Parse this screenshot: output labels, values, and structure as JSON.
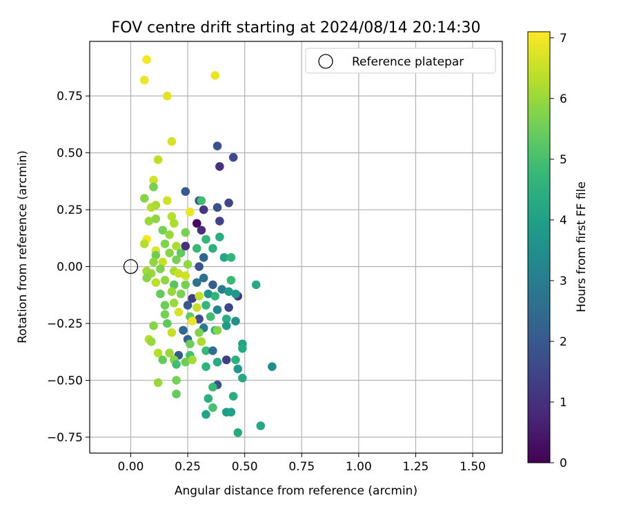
{
  "chart_data": {
    "type": "scatter",
    "title": "FOV centre drift starting at 2024/08/14 20:14:30",
    "xlabel": "Angular distance from reference (arcmin)",
    "ylabel": "Rotation from reference (arcmin)",
    "xlim": [
      -0.18,
      1.63
    ],
    "ylim": [
      -0.82,
      0.99
    ],
    "xticks": [
      0.0,
      0.25,
      0.5,
      0.75,
      1.0,
      1.25,
      1.5
    ],
    "xtick_labels": [
      "0.00",
      "0.25",
      "0.50",
      "0.75",
      "1.00",
      "1.25",
      "1.50"
    ],
    "yticks": [
      -0.75,
      -0.5,
      -0.25,
      0.0,
      0.25,
      0.5,
      0.75
    ],
    "ytick_labels": [
      "−0.75",
      "−0.50",
      "−0.25",
      "0.00",
      "0.25",
      "0.50",
      "0.75"
    ],
    "grid": true,
    "legend": {
      "position": "top-right",
      "entries": [
        "Reference platepar"
      ]
    },
    "reference_point": {
      "x": 0.0,
      "y": 0.0,
      "marker": "open-circle"
    },
    "colorbar": {
      "label": "Hours from first FF file",
      "min": 0,
      "max": 7.1,
      "ticks": [
        0,
        1,
        2,
        3,
        4,
        5,
        6,
        7
      ],
      "tick_labels": [
        "0",
        "1",
        "2",
        "3",
        "4",
        "5",
        "6",
        "7"
      ],
      "colormap": "viridis"
    },
    "colormap_stops": [
      "#440154",
      "#482878",
      "#3e4989",
      "#31688e",
      "#26828e",
      "#1f9e89",
      "#35b779",
      "#6ece58",
      "#b5de2b",
      "#fde725"
    ],
    "points": [
      {
        "x": 0.07,
        "y": 0.91,
        "h": 7.0
      },
      {
        "x": 0.06,
        "y": 0.82,
        "h": 6.9
      },
      {
        "x": 0.37,
        "y": 0.84,
        "h": 6.9
      },
      {
        "x": 0.16,
        "y": 0.75,
        "h": 6.8
      },
      {
        "x": 0.18,
        "y": 0.55,
        "h": 6.7
      },
      {
        "x": 0.12,
        "y": 0.47,
        "h": 6.4
      },
      {
        "x": 0.38,
        "y": 0.53,
        "h": 1.8
      },
      {
        "x": 0.45,
        "y": 0.48,
        "h": 1.6
      },
      {
        "x": 0.39,
        "y": 0.44,
        "h": 1.0
      },
      {
        "x": 0.1,
        "y": 0.38,
        "h": 6.6
      },
      {
        "x": 0.1,
        "y": 0.35,
        "h": 5.6
      },
      {
        "x": 0.24,
        "y": 0.33,
        "h": 2.0
      },
      {
        "x": 0.06,
        "y": 0.3,
        "h": 5.8
      },
      {
        "x": 0.16,
        "y": 0.29,
        "h": 6.6
      },
      {
        "x": 0.3,
        "y": 0.29,
        "h": 1.8
      },
      {
        "x": 0.31,
        "y": 0.29,
        "h": 4.9
      },
      {
        "x": 0.38,
        "y": 0.26,
        "h": 1.8
      },
      {
        "x": 0.43,
        "y": 0.28,
        "h": 1.5
      },
      {
        "x": 0.09,
        "y": 0.26,
        "h": 6.3
      },
      {
        "x": 0.11,
        "y": 0.27,
        "h": 6.2
      },
      {
        "x": 0.26,
        "y": 0.24,
        "h": 6.9
      },
      {
        "x": 0.32,
        "y": 0.25,
        "h": 1.2
      },
      {
        "x": 0.08,
        "y": 0.2,
        "h": 6.0
      },
      {
        "x": 0.11,
        "y": 0.21,
        "h": 5.9
      },
      {
        "x": 0.18,
        "y": 0.22,
        "h": 6.3
      },
      {
        "x": 0.19,
        "y": 0.19,
        "h": 6.2
      },
      {
        "x": 0.29,
        "y": 0.19,
        "h": 0.2
      },
      {
        "x": 0.31,
        "y": 0.16,
        "h": 0.9
      },
      {
        "x": 0.39,
        "y": 0.2,
        "h": 1.4
      },
      {
        "x": 0.14,
        "y": 0.16,
        "h": 5.6
      },
      {
        "x": 0.17,
        "y": 0.14,
        "h": 6.0
      },
      {
        "x": 0.24,
        "y": 0.15,
        "h": 5.6
      },
      {
        "x": 0.07,
        "y": 0.12,
        "h": 7.0
      },
      {
        "x": 0.06,
        "y": 0.1,
        "h": 6.3
      },
      {
        "x": 0.15,
        "y": 0.1,
        "h": 5.7
      },
      {
        "x": 0.2,
        "y": 0.09,
        "h": 6.2
      },
      {
        "x": 0.33,
        "y": 0.12,
        "h": 4.7
      },
      {
        "x": 0.39,
        "y": 0.13,
        "h": 4.4
      },
      {
        "x": 0.11,
        "y": 0.07,
        "h": 6.8
      },
      {
        "x": 0.11,
        "y": 0.05,
        "h": 5.5
      },
      {
        "x": 0.17,
        "y": 0.06,
        "h": 5.8
      },
      {
        "x": 0.22,
        "y": 0.06,
        "h": 5.4
      },
      {
        "x": 0.24,
        "y": 0.09,
        "h": 1.0
      },
      {
        "x": 0.29,
        "y": 0.08,
        "h": 4.8
      },
      {
        "x": 0.36,
        "y": 0.08,
        "h": 4.5
      },
      {
        "x": 0.1,
        "y": 0.02,
        "h": 5.9
      },
      {
        "x": 0.14,
        "y": 0.02,
        "h": 6.5
      },
      {
        "x": 0.2,
        "y": 0.03,
        "h": 5.6
      },
      {
        "x": 0.25,
        "y": 0.01,
        "h": 5.9
      },
      {
        "x": 0.32,
        "y": 0.04,
        "h": 2.3
      },
      {
        "x": 0.41,
        "y": 0.04,
        "h": 4.2
      },
      {
        "x": 0.44,
        "y": 0.04,
        "h": 4.6
      },
      {
        "x": 0.07,
        "y": -0.02,
        "h": 6.1
      },
      {
        "x": 0.09,
        "y": -0.03,
        "h": 6.0
      },
      {
        "x": 0.13,
        "y": -0.01,
        "h": 5.7
      },
      {
        "x": 0.19,
        "y": -0.02,
        "h": 6.2
      },
      {
        "x": 0.21,
        "y": -0.03,
        "h": 6.5
      },
      {
        "x": 0.24,
        "y": -0.04,
        "h": 6.6
      },
      {
        "x": 0.3,
        "y": 0.0,
        "h": 1.9
      },
      {
        "x": 0.07,
        "y": -0.05,
        "h": 5.8
      },
      {
        "x": 0.11,
        "y": -0.07,
        "h": 6.4
      },
      {
        "x": 0.15,
        "y": -0.06,
        "h": 5.9
      },
      {
        "x": 0.19,
        "y": -0.08,
        "h": 5.2
      },
      {
        "x": 0.24,
        "y": -0.08,
        "h": 5.6
      },
      {
        "x": 0.29,
        "y": -0.07,
        "h": 2.7
      },
      {
        "x": 0.32,
        "y": -0.05,
        "h": 2.6
      },
      {
        "x": 0.36,
        "y": -0.08,
        "h": 2.1
      },
      {
        "x": 0.4,
        "y": -0.1,
        "h": 3.0
      },
      {
        "x": 0.44,
        "y": -0.06,
        "h": 4.8
      },
      {
        "x": 0.55,
        "y": -0.08,
        "h": 4.3
      },
      {
        "x": 0.13,
        "y": -0.12,
        "h": 5.4
      },
      {
        "x": 0.18,
        "y": -0.11,
        "h": 6.0
      },
      {
        "x": 0.22,
        "y": -0.12,
        "h": 5.7
      },
      {
        "x": 0.27,
        "y": -0.14,
        "h": 1.3
      },
      {
        "x": 0.3,
        "y": -0.13,
        "h": 6.4
      },
      {
        "x": 0.34,
        "y": -0.12,
        "h": 3.7
      },
      {
        "x": 0.37,
        "y": -0.13,
        "h": 4.6
      },
      {
        "x": 0.43,
        "y": -0.11,
        "h": 3.9
      },
      {
        "x": 0.47,
        "y": -0.13,
        "h": 1.2
      },
      {
        "x": 0.46,
        "y": -0.12,
        "h": 3.8
      },
      {
        "x": 0.15,
        "y": -0.17,
        "h": 5.5
      },
      {
        "x": 0.19,
        "y": -0.16,
        "h": 6.0
      },
      {
        "x": 0.25,
        "y": -0.17,
        "h": 2.0
      },
      {
        "x": 0.29,
        "y": -0.18,
        "h": 6.5
      },
      {
        "x": 0.33,
        "y": -0.17,
        "h": 4.7
      },
      {
        "x": 0.38,
        "y": -0.19,
        "h": 3.2
      },
      {
        "x": 0.43,
        "y": -0.18,
        "h": 1.5
      },
      {
        "x": 0.15,
        "y": -0.21,
        "h": 5.6
      },
      {
        "x": 0.21,
        "y": -0.2,
        "h": 6.7
      },
      {
        "x": 0.26,
        "y": -0.22,
        "h": 5.4
      },
      {
        "x": 0.3,
        "y": -0.23,
        "h": 1.6
      },
      {
        "x": 0.35,
        "y": -0.22,
        "h": 4.9
      },
      {
        "x": 0.42,
        "y": -0.23,
        "h": 4.4
      },
      {
        "x": 0.46,
        "y": -0.24,
        "h": 3.5
      },
      {
        "x": 0.1,
        "y": -0.26,
        "h": 5.8
      },
      {
        "x": 0.16,
        "y": -0.25,
        "h": 5.3
      },
      {
        "x": 0.27,
        "y": -0.24,
        "h": 6.9
      },
      {
        "x": 0.32,
        "y": -0.27,
        "h": 2.9
      },
      {
        "x": 0.37,
        "y": -0.28,
        "h": 4.7
      },
      {
        "x": 0.42,
        "y": -0.26,
        "h": 3.9
      },
      {
        "x": 0.18,
        "y": -0.29,
        "h": 6.5
      },
      {
        "x": 0.23,
        "y": -0.28,
        "h": 2.4
      },
      {
        "x": 0.3,
        "y": -0.29,
        "h": 5.7
      },
      {
        "x": 0.38,
        "y": -0.28,
        "h": 5.8
      },
      {
        "x": 0.08,
        "y": -0.32,
        "h": 6.3
      },
      {
        "x": 0.09,
        "y": -0.33,
        "h": 6.0
      },
      {
        "x": 0.25,
        "y": -0.32,
        "h": 2.3
      },
      {
        "x": 0.31,
        "y": -0.33,
        "h": 6.2
      },
      {
        "x": 0.26,
        "y": -0.34,
        "h": 5.5
      },
      {
        "x": 0.49,
        "y": -0.34,
        "h": 4.1
      },
      {
        "x": 0.49,
        "y": -0.36,
        "h": 4.3
      },
      {
        "x": 0.12,
        "y": -0.38,
        "h": 6.3
      },
      {
        "x": 0.17,
        "y": -0.38,
        "h": 6.0
      },
      {
        "x": 0.21,
        "y": -0.39,
        "h": 2.0
      },
      {
        "x": 0.26,
        "y": -0.39,
        "h": 5.0
      },
      {
        "x": 0.33,
        "y": -0.37,
        "h": 4.8
      },
      {
        "x": 0.36,
        "y": -0.37,
        "h": 2.6
      },
      {
        "x": 0.14,
        "y": -0.41,
        "h": 5.4
      },
      {
        "x": 0.19,
        "y": -0.41,
        "h": 5.8
      },
      {
        "x": 0.24,
        "y": -0.42,
        "h": 5.5
      },
      {
        "x": 0.27,
        "y": -0.41,
        "h": 6.1
      },
      {
        "x": 0.2,
        "y": -0.43,
        "h": 4.9
      },
      {
        "x": 0.33,
        "y": -0.44,
        "h": 4.6
      },
      {
        "x": 0.38,
        "y": -0.42,
        "h": 4.3
      },
      {
        "x": 0.42,
        "y": -0.41,
        "h": 1.3
      },
      {
        "x": 0.46,
        "y": -0.41,
        "h": 4.5
      },
      {
        "x": 0.47,
        "y": -0.45,
        "h": 3.8
      },
      {
        "x": 0.62,
        "y": -0.44,
        "h": 3.5
      },
      {
        "x": 0.12,
        "y": -0.51,
        "h": 6.0
      },
      {
        "x": 0.2,
        "y": -0.5,
        "h": 5.6
      },
      {
        "x": 0.38,
        "y": -0.52,
        "h": 1.8
      },
      {
        "x": 0.49,
        "y": -0.49,
        "h": 4.3
      },
      {
        "x": 0.2,
        "y": -0.56,
        "h": 5.4
      },
      {
        "x": 0.36,
        "y": -0.53,
        "h": 4.8
      },
      {
        "x": 0.34,
        "y": -0.58,
        "h": 4.5
      },
      {
        "x": 0.45,
        "y": -0.57,
        "h": 4.4
      },
      {
        "x": 0.36,
        "y": -0.62,
        "h": 5.0
      },
      {
        "x": 0.33,
        "y": -0.65,
        "h": 4.1
      },
      {
        "x": 0.42,
        "y": -0.64,
        "h": 3.9
      },
      {
        "x": 0.44,
        "y": -0.64,
        "h": 4.0
      },
      {
        "x": 0.57,
        "y": -0.7,
        "h": 4.2
      },
      {
        "x": 0.47,
        "y": -0.73,
        "h": 4.3
      }
    ]
  }
}
